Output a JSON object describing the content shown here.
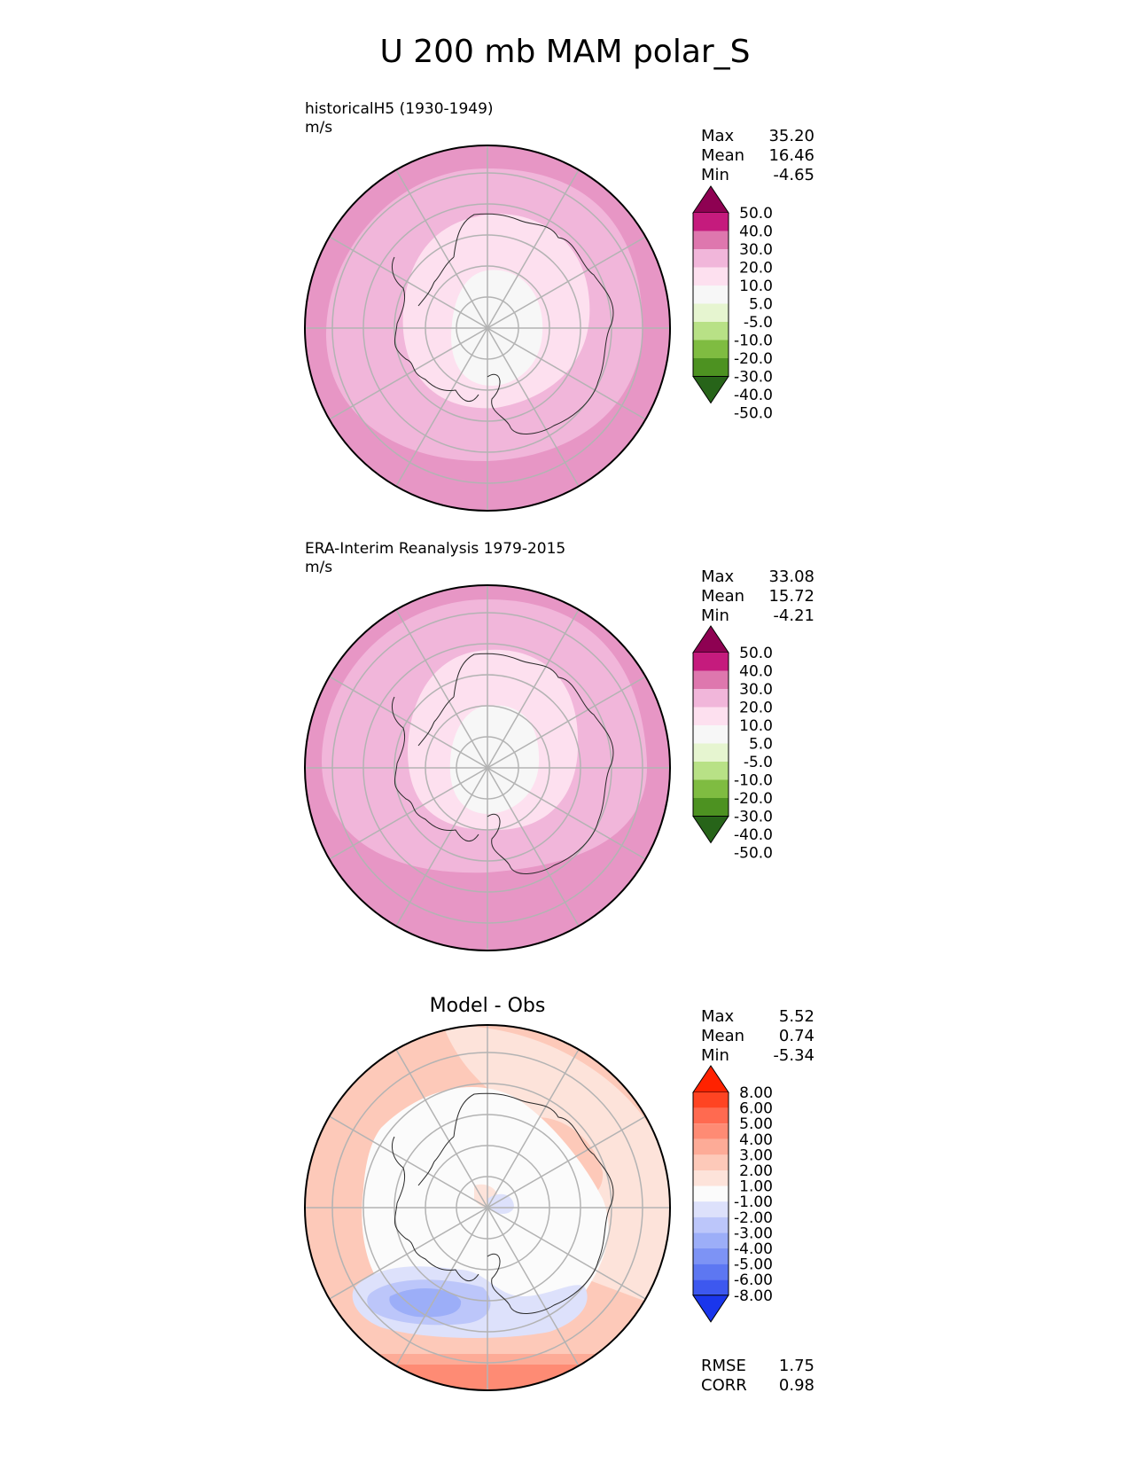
{
  "title": "U 200 mb MAM polar_S",
  "chart_data": [
    {
      "type": "heatmap",
      "projection": "south polar stereographic",
      "title": "historicalH5 (1930-1949)",
      "units": "m/s",
      "stats": {
        "max": "35.20",
        "mean": "16.46",
        "min": "-4.65"
      },
      "colorbar": {
        "levels": [
          "50.0",
          "40.0",
          "30.0",
          "20.0",
          "10.0",
          "5.0",
          "-5.0",
          "-10.0",
          "-20.0",
          "-30.0",
          "-40.0",
          "-50.0"
        ],
        "colors": [
          "#8e0152",
          "#c51b7d",
          "#de77ae",
          "#f1b6da",
          "#fde0ef",
          "#f7f7f7",
          "#e6f5d0",
          "#b8e186",
          "#7fbc41",
          "#4d9221",
          "#276419"
        ],
        "extend": "both"
      },
      "field_bands": [
        {
          "level": "5 to 10",
          "color": "#f7f7f7"
        },
        {
          "level": "10 to 20",
          "color": "#fde0ef"
        },
        {
          "level": "20 to 30",
          "color": "#f1b6da"
        },
        {
          "level": "30 to 40",
          "color": "#e796c5"
        },
        {
          "level": "40 to 50",
          "color": "#de77ae"
        }
      ]
    },
    {
      "type": "heatmap",
      "projection": "south polar stereographic",
      "title": "ERA-Interim Reanalysis 1979-2015",
      "units": "m/s",
      "stats": {
        "max": "33.08",
        "mean": "15.72",
        "min": "-4.21"
      },
      "colorbar": {
        "levels": [
          "50.0",
          "40.0",
          "30.0",
          "20.0",
          "10.0",
          "5.0",
          "-5.0",
          "-10.0",
          "-20.0",
          "-30.0",
          "-40.0",
          "-50.0"
        ],
        "colors": [
          "#8e0152",
          "#c51b7d",
          "#de77ae",
          "#f1b6da",
          "#fde0ef",
          "#f7f7f7",
          "#e6f5d0",
          "#b8e186",
          "#7fbc41",
          "#4d9221",
          "#276419"
        ],
        "extend": "both"
      },
      "field_bands": [
        {
          "level": "5 to 10",
          "color": "#f7f7f7"
        },
        {
          "level": "10 to 20",
          "color": "#fde0ef"
        },
        {
          "level": "20 to 30",
          "color": "#f1b6da"
        },
        {
          "level": "30 to 40",
          "color": "#e796c5"
        },
        {
          "level": "40 to 50",
          "color": "#de77ae"
        }
      ]
    },
    {
      "type": "heatmap",
      "projection": "south polar stereographic",
      "title": "Model - Obs",
      "stats": {
        "max": "5.52",
        "mean": "0.74",
        "min": "-5.34"
      },
      "metrics": {
        "rmse": "1.75",
        "corr": "0.98"
      },
      "colorbar": {
        "levels": [
          "8.00",
          "6.00",
          "5.00",
          "4.00",
          "3.00",
          "2.00",
          "1.00",
          "-1.00",
          "-2.00",
          "-3.00",
          "-4.00",
          "-5.00",
          "-6.00",
          "-8.00"
        ],
        "colors": [
          "#ff2200",
          "#ff4422",
          "#ff6a50",
          "#fe8b74",
          "#fdab97",
          "#fdc9b9",
          "#fde3da",
          "#fbfbfb",
          "#dde1fb",
          "#bcc6fa",
          "#9caef8",
          "#7d93f5",
          "#5d77f2",
          "#3d58ef",
          "#1a36ec"
        ],
        "extend": "both"
      },
      "field_bands": [
        {
          "level": "-1 to 1",
          "color": "#fbfbfb"
        },
        {
          "level": "1 to 2",
          "color": "#fde3da"
        },
        {
          "level": "2 to 3",
          "color": "#fdc9b9"
        },
        {
          "level": "-2 to -1",
          "color": "#dde1fb"
        },
        {
          "level": "-3 to -2",
          "color": "#bcc6fa"
        },
        {
          "level": "-4 to -3",
          "color": "#9caef8"
        }
      ]
    }
  ],
  "stat_labels": {
    "max": "Max",
    "mean": "Mean",
    "min": "Min",
    "rmse": "RMSE",
    "corr": "CORR"
  }
}
